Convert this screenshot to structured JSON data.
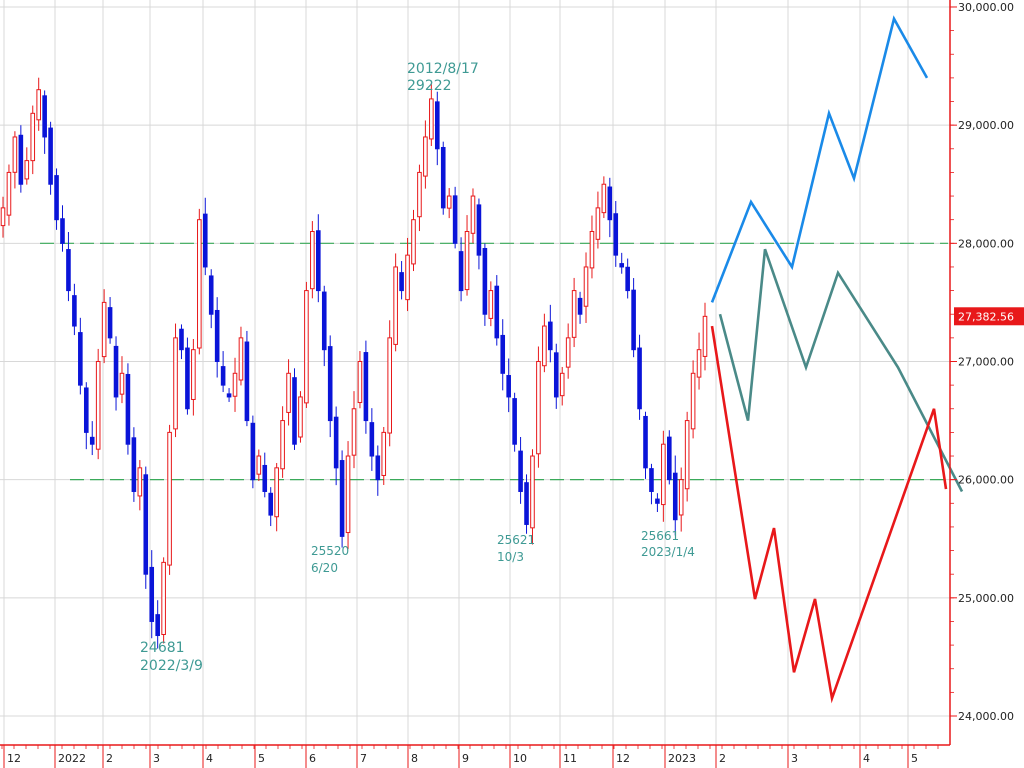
{
  "chart_data": {
    "type": "candlestick",
    "title": "",
    "colors": {
      "up": "#e8181a",
      "down": "#0a14d8",
      "price_box": "#e8181a",
      "axis": "#e8181a",
      "grid": "#d8d8d8",
      "support_resistance": "#3aaa5a",
      "annotation": "#3f9a94",
      "scenario_bull": "#1a8ae8",
      "scenario_neutral": "#4a8a88",
      "scenario_bear": "#e8181a"
    },
    "y_axis": {
      "position": "right",
      "range": [
        23800,
        30100
      ],
      "ticks": [
        {
          "value": 24000,
          "label": "24,000.00"
        },
        {
          "value": 25000,
          "label": "25,000.00"
        },
        {
          "value": 26000,
          "label": "26,000.00"
        },
        {
          "value": 27000,
          "label": "27,000.00"
        },
        {
          "value": 28000,
          "label": "28,000.00"
        },
        {
          "value": 29000,
          "label": "29,000.00"
        },
        {
          "value": 30000,
          "label": "30,000.00"
        }
      ]
    },
    "x_axis": {
      "labels": [
        "12",
        "2022",
        "2",
        "3",
        "4",
        "5",
        "6",
        "7",
        "8",
        "9",
        "10",
        "11",
        "12",
        "2023",
        "2",
        "3",
        "4",
        "5"
      ]
    },
    "current_price": {
      "value": 27382.56,
      "label": "27,382.56"
    },
    "horizontal_lines": [
      28000,
      26000
    ],
    "annotations": [
      {
        "price": 24681,
        "date": "2022/3/9"
      },
      {
        "price": 25520,
        "date": "6/20"
      },
      {
        "date": "2012/8/17",
        "price": 29222
      },
      {
        "price": 25621,
        "date": "10/3"
      },
      {
        "price": 25661,
        "date": "2023/1/4"
      }
    ],
    "price_series": [
      28300,
      28600,
      28900,
      28500,
      28700,
      29100,
      29300,
      28900,
      28500,
      28200,
      28000,
      27600,
      27300,
      26800,
      26400,
      26300,
      27000,
      27500,
      27200,
      26700,
      26900,
      26300,
      25900,
      26100,
      25200,
      24800,
      24681,
      25300,
      26400,
      27200,
      27100,
      26600,
      27100,
      28200,
      27800,
      27400,
      27000,
      26800,
      26700,
      26900,
      27200,
      26500,
      26000,
      26200,
      25900,
      25700,
      26100,
      26500,
      26900,
      26300,
      26700,
      27600,
      28100,
      27600,
      27100,
      26500,
      26100,
      25520,
      26200,
      26600,
      27000,
      26500,
      26200,
      26000,
      26400,
      27200,
      27800,
      27600,
      27900,
      28200,
      28600,
      28900,
      29222,
      28800,
      28300,
      28400,
      28000,
      27600,
      28100,
      28400,
      27900,
      27400,
      27600,
      27200,
      26900,
      26700,
      26300,
      25900,
      25621,
      26200,
      27000,
      27300,
      27100,
      26700,
      26900,
      27200,
      27600,
      27400,
      27800,
      28100,
      28300,
      28500,
      28200,
      27900,
      27800,
      27600,
      27100,
      26600,
      26100,
      25900,
      25800,
      26300,
      26000,
      25661,
      26000,
      26500,
      26900,
      27100,
      27382
    ],
    "series": [
      {
        "values": [
          27500,
          28350,
          27800,
          29100,
          28550,
          29900,
          29400
        ]
      },
      {
        "values": [
          27400,
          26500,
          27950,
          26950,
          27750,
          26950,
          25900
        ]
      },
      {
        "values": [
          27300,
          24990,
          25590,
          24370,
          24990,
          24150,
          26600,
          25920
        ]
      }
    ]
  }
}
